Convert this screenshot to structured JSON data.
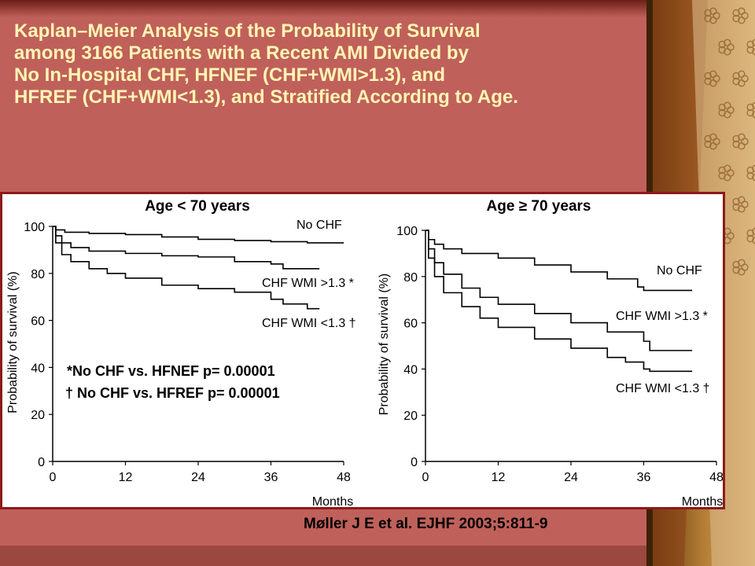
{
  "title_lines": [
    "Kaplan–Meier Analysis of the Probability of Survival",
    "among 3166 Patients with a Recent AMI Divided by",
    "No In-Hospital CHF, HFNEF (CHF+WMI>1.3), and",
    "HFREF (CHF+WMI<1.3), and Stratified According to Age."
  ],
  "citation": "Møller J E et al. EJHF 2003;5:811-9",
  "colors": {
    "background": "#c0605a",
    "title": "#fff6b4",
    "panel_border": "#8c1a1a",
    "curve": "#000000"
  },
  "chart_data": [
    {
      "type": "line",
      "title": "Age < 70 years",
      "xlabel": "Months",
      "ylabel": "Probability of survival (%)",
      "xticks": [
        0,
        12,
        24,
        36,
        48
      ],
      "yticks": [
        0,
        20,
        40,
        60,
        80,
        100
      ],
      "xlim": [
        0,
        48
      ],
      "ylim": [
        0,
        100
      ],
      "grid": false,
      "series": [
        {
          "name": "No CHF",
          "label": "No CHF",
          "points": [
            [
              0,
              100
            ],
            [
              0.5,
              98.5
            ],
            [
              2,
              97.5
            ],
            [
              6,
              97
            ],
            [
              12,
              96.5
            ],
            [
              18,
              95.5
            ],
            [
              24,
              94.5
            ],
            [
              30,
              94
            ],
            [
              36,
              93.5
            ],
            [
              42,
              93
            ],
            [
              48,
              93
            ]
          ]
        },
        {
          "name": "CHF WMI >1.3",
          "label": "CHF WMI >1.3 *",
          "points": [
            [
              0,
              100
            ],
            [
              0.5,
              96
            ],
            [
              1.5,
              93
            ],
            [
              3,
              91
            ],
            [
              6,
              89.5
            ],
            [
              12,
              88.5
            ],
            [
              18,
              87.5
            ],
            [
              24,
              87
            ],
            [
              30,
              85
            ],
            [
              36,
              84
            ],
            [
              38,
              82
            ],
            [
              44,
              82
            ]
          ]
        },
        {
          "name": "CHF WMI <1.3",
          "label": "CHF WMI <1.3 †",
          "points": [
            [
              0,
              100
            ],
            [
              0.5,
              93
            ],
            [
              1.5,
              88
            ],
            [
              3,
              85
            ],
            [
              6,
              82
            ],
            [
              9,
              80
            ],
            [
              12,
              78
            ],
            [
              18,
              75
            ],
            [
              24,
              73.5
            ],
            [
              30,
              72
            ],
            [
              36,
              69
            ],
            [
              38,
              67
            ],
            [
              42,
              65
            ],
            [
              44,
              65
            ]
          ]
        }
      ],
      "annotations": [
        "*No CHF vs. HFNEF p= 0.00001",
        "† No CHF vs. HFREF p= 0.00001"
      ]
    },
    {
      "type": "line",
      "title": "Age ≥ 70 years",
      "xlabel": "Months",
      "ylabel": "Probability of survival (%)",
      "xticks": [
        0,
        12,
        24,
        36,
        48
      ],
      "yticks": [
        0,
        20,
        40,
        60,
        80,
        100
      ],
      "xlim": [
        0,
        48
      ],
      "ylim": [
        0,
        100
      ],
      "grid": false,
      "series": [
        {
          "name": "No CHF",
          "label": "No CHF",
          "points": [
            [
              0,
              100
            ],
            [
              0.5,
              96
            ],
            [
              1.5,
              94
            ],
            [
              3,
              92
            ],
            [
              6,
              90
            ],
            [
              12,
              88
            ],
            [
              18,
              85
            ],
            [
              24,
              82
            ],
            [
              30,
              79
            ],
            [
              35,
              75.5
            ],
            [
              36,
              74
            ],
            [
              44,
              74
            ]
          ]
        },
        {
          "name": "CHF WMI >1.3",
          "label": "CHF WMI >1.3 *",
          "points": [
            [
              0,
              100
            ],
            [
              0.5,
              92
            ],
            [
              1.5,
              86
            ],
            [
              3,
              81
            ],
            [
              6,
              75
            ],
            [
              9,
              71
            ],
            [
              12,
              68
            ],
            [
              18,
              64
            ],
            [
              24,
              60
            ],
            [
              30,
              56
            ],
            [
              36,
              52
            ],
            [
              37,
              48
            ],
            [
              44,
              48
            ]
          ]
        },
        {
          "name": "CHF WMI <1.3",
          "label": "CHF WMI <1.3 †",
          "points": [
            [
              0,
              100
            ],
            [
              0.5,
              88
            ],
            [
              1.5,
              80
            ],
            [
              3,
              73
            ],
            [
              6,
              67
            ],
            [
              9,
              62
            ],
            [
              12,
              58
            ],
            [
              18,
              53
            ],
            [
              24,
              49
            ],
            [
              30,
              45
            ],
            [
              33,
              43
            ],
            [
              36,
              40
            ],
            [
              37,
              39
            ],
            [
              44,
              39
            ]
          ]
        }
      ]
    }
  ]
}
